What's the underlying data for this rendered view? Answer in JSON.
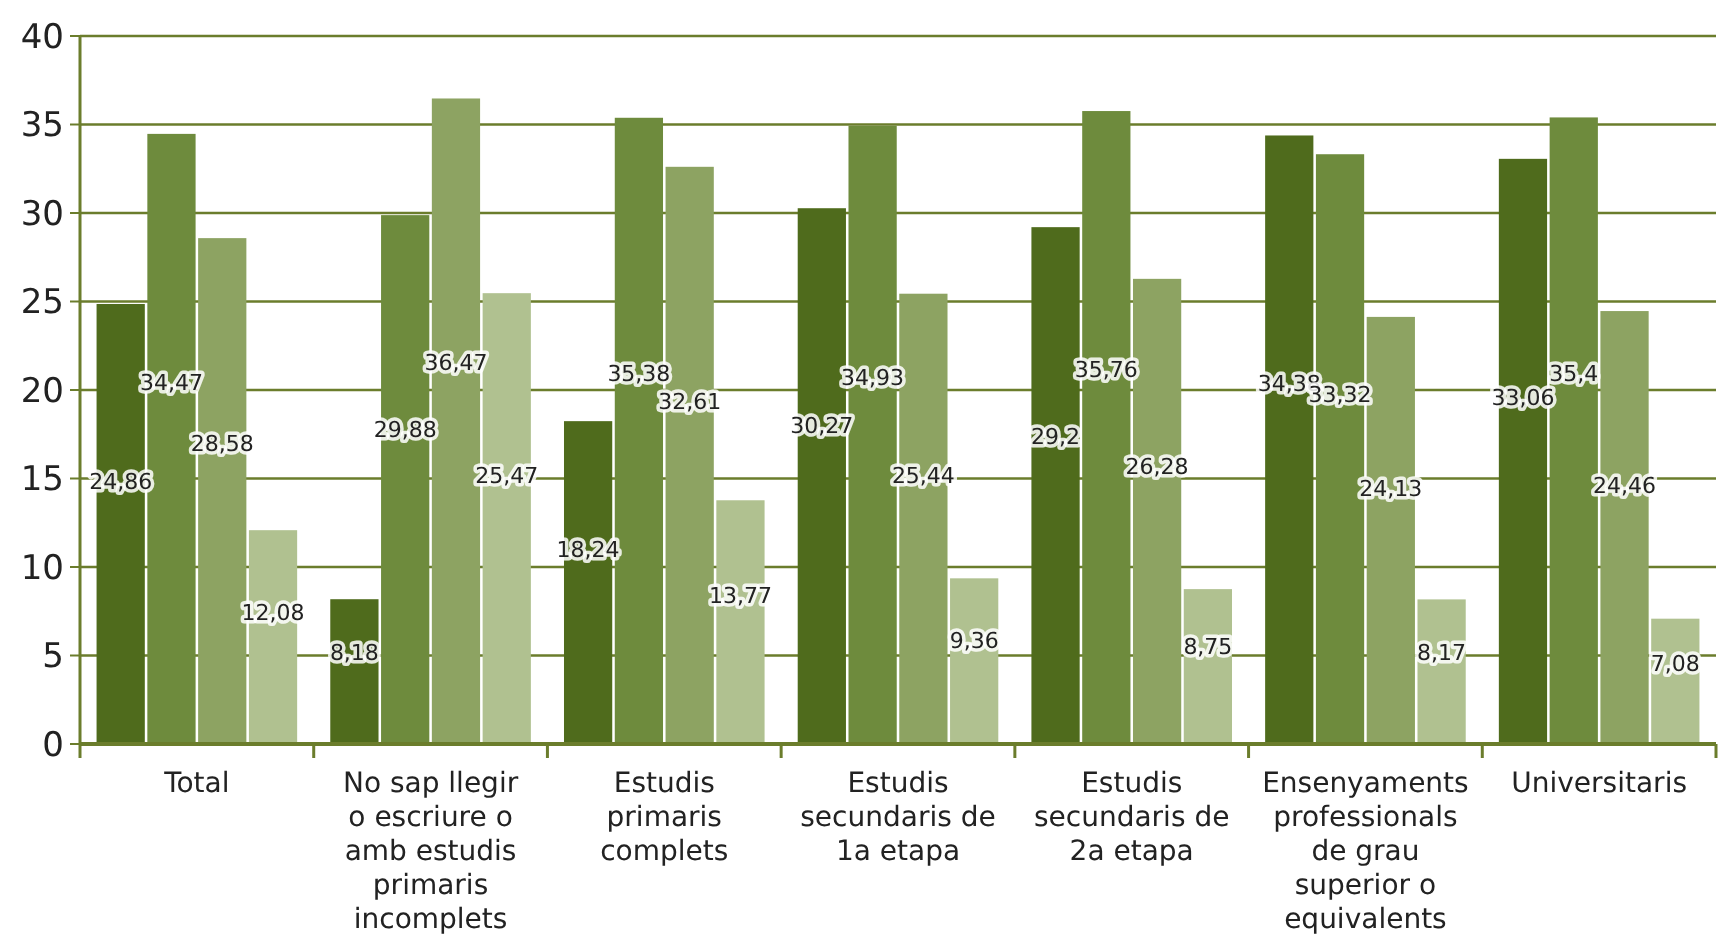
{
  "chart_data": {
    "type": "bar",
    "categories": [
      "Total",
      "No sap llegir o escriure o amb estudis primaris incomplets",
      "Estudis primaris complets",
      "Estudis secundaris de 1a etapa",
      "Estudis secundaris de 2a etapa",
      "Ensenyaments professionals de grau superior o equivalents",
      "Universitaris"
    ],
    "series": [
      {
        "color": "#4f6b1c",
        "values": [
          24.86,
          8.18,
          18.24,
          30.27,
          29.2,
          34.38,
          33.06
        ],
        "value_labels": [
          "24,86",
          "8,18",
          "18,24",
          "30,27",
          "29,2",
          "34,38",
          "33,06"
        ]
      },
      {
        "color": "#6e8b3d",
        "values": [
          34.47,
          29.88,
          35.38,
          34.93,
          35.76,
          33.32,
          35.4
        ],
        "value_labels": [
          "34,47",
          "29,88",
          "35,38",
          "34,93",
          "35,76",
          "33,32",
          "35,4"
        ]
      },
      {
        "color": "#8da362",
        "values": [
          28.58,
          36.47,
          32.61,
          25.44,
          26.28,
          24.13,
          24.46
        ],
        "value_labels": [
          "28,58",
          "36,47",
          "32,61",
          "25,44",
          "26,28",
          "24,13",
          "24,46"
        ]
      },
      {
        "color": "#b0c190",
        "values": [
          12.08,
          25.47,
          13.77,
          9.36,
          8.75,
          8.17,
          7.08
        ],
        "value_labels": [
          "12,08",
          "25,47",
          "13,77",
          "9,36",
          "8,75",
          "8,17",
          "7,08"
        ]
      }
    ],
    "ylim": [
      0,
      40
    ],
    "yticks": [
      0,
      5,
      10,
      15,
      20,
      25,
      30,
      35,
      40
    ],
    "grid": "y"
  }
}
